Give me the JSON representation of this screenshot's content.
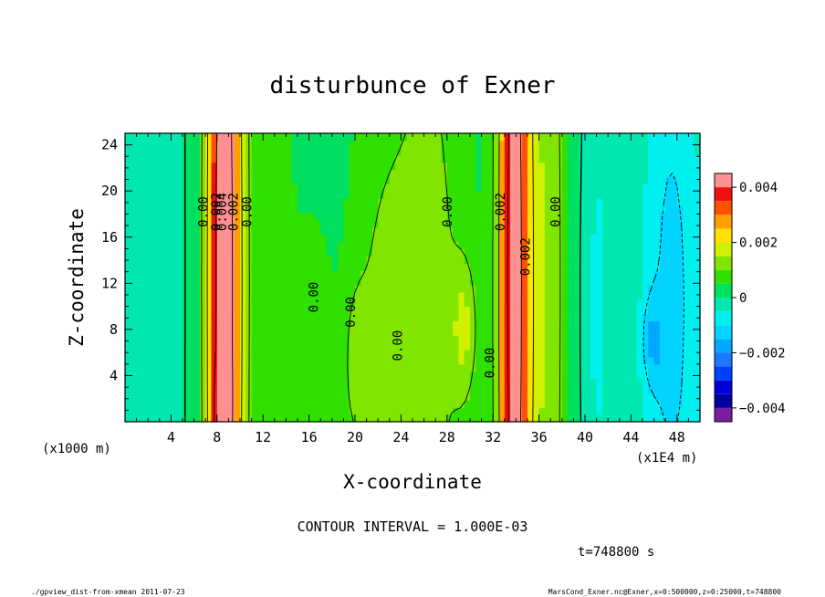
{
  "chart_data": {
    "type": "heatmap",
    "title": "disturbunce of Exner",
    "xlabel": "X-coordinate",
    "ylabel": "Z-coordinate",
    "x_unit_left": "(x1000 m)",
    "x_unit_right": "(x1E4 m)",
    "xlim": [
      0,
      50
    ],
    "ylim": [
      0,
      25
    ],
    "x_ticks": [
      4,
      8,
      12,
      16,
      20,
      24,
      28,
      32,
      36,
      40,
      44,
      48
    ],
    "y_ticks": [
      4,
      8,
      12,
      16,
      20,
      24
    ],
    "contour_interval_text": "CONTOUR INTERVAL = 1.000E-03",
    "time_text": "t=748800 s",
    "footer_left": "./gpview_dist-from-xmean  2011-07-23",
    "footer_right": "MarsCond_Exner.nc@Exner,x=0:500000,z=0:25000,t=748800",
    "colorbar": {
      "min": -0.004,
      "max": 0.004,
      "tick_values": [
        0.004,
        0.002,
        0,
        -0.002,
        -0.004
      ],
      "tick_labels": [
        "0.004",
        "0.002",
        "0",
        "−0.002",
        "−0.004"
      ],
      "levels": [
        {
          "lo": -0.0045,
          "hi": -0.004,
          "color": "#7a1ea0"
        },
        {
          "lo": -0.004,
          "hi": -0.0035,
          "color": "#0000a0"
        },
        {
          "lo": -0.0035,
          "hi": -0.003,
          "color": "#0000d8"
        },
        {
          "lo": -0.003,
          "hi": -0.0025,
          "color": "#0040ff"
        },
        {
          "lo": -0.0025,
          "hi": -0.002,
          "color": "#1e78ff"
        },
        {
          "lo": -0.002,
          "hi": -0.0015,
          "color": "#00a8ff"
        },
        {
          "lo": -0.0015,
          "hi": -0.001,
          "color": "#00d4ff"
        },
        {
          "lo": -0.001,
          "hi": -0.0005,
          "color": "#00f0f0"
        },
        {
          "lo": -0.0005,
          "hi": 0,
          "color": "#00e8b0"
        },
        {
          "lo": 0,
          "hi": 0.0005,
          "color": "#00e060"
        },
        {
          "lo": 0.0005,
          "hi": 0.001,
          "color": "#30e000"
        },
        {
          "lo": 0.001,
          "hi": 0.0015,
          "color": "#80e600"
        },
        {
          "lo": 0.0015,
          "hi": 0.002,
          "color": "#d0f000"
        },
        {
          "lo": 0.002,
          "hi": 0.0025,
          "color": "#ffe000"
        },
        {
          "lo": 0.0025,
          "hi": 0.003,
          "color": "#ffa000"
        },
        {
          "lo": 0.003,
          "hi": 0.0035,
          "color": "#ff5000"
        },
        {
          "lo": 0.0035,
          "hi": 0.004,
          "color": "#f01010"
        },
        {
          "lo": 0.004,
          "hi": 0.0045,
          "color": "#ff9090"
        }
      ]
    },
    "field_features": [
      {
        "x": 8.6,
        "z": 12,
        "sx": 1.5,
        "sz": 60,
        "amp": 0.0048
      },
      {
        "x": 8.4,
        "z": 1,
        "sx": 0.6,
        "sz": 4,
        "amp": 0.0015
      },
      {
        "x": 12.5,
        "z": 12,
        "sx": 3.0,
        "sz": 60,
        "amp": 0.0004
      },
      {
        "x": 16.5,
        "z": 4,
        "sx": 1.4,
        "sz": 11,
        "amp": 0.0006
      },
      {
        "x": 20,
        "z": 5,
        "sx": 1.2,
        "sz": 8,
        "amp": 0.0006
      },
      {
        "x": 22.5,
        "z": 8,
        "sx": 2.6,
        "sz": 18,
        "amp": 0.0007
      },
      {
        "x": 26.5,
        "z": 10,
        "sx": 3.0,
        "sz": 30,
        "amp": 0.0008
      },
      {
        "x": 29.5,
        "z": 8,
        "sx": 1.1,
        "sz": 6,
        "amp": 0.001
      },
      {
        "x": 33.8,
        "z": 12,
        "sx": 1.3,
        "sz": 60,
        "amp": 0.0042
      },
      {
        "x": 36.5,
        "z": 12,
        "sx": 2.2,
        "sz": 60,
        "amp": 0.0012
      },
      {
        "x": 41,
        "z": 10,
        "sx": 1.6,
        "sz": 30,
        "amp": -0.0007
      },
      {
        "x": 2,
        "z": 12,
        "sx": 2.5,
        "sz": 60,
        "amp": -0.0005
      },
      {
        "x": 47.5,
        "z": 10,
        "sx": 2.8,
        "sz": 30,
        "amp": -0.0012
      },
      {
        "x": 45.8,
        "z": 7,
        "sx": 0.9,
        "sz": 4,
        "amp": -0.0009
      }
    ],
    "contour_labels": [
      {
        "x": 7.2,
        "z": 18.2,
        "text": "0.00"
      },
      {
        "x": 8.3,
        "z": 18.2,
        "text": "0.002"
      },
      {
        "x": 8.8,
        "z": 18.2,
        "text": "0.004"
      },
      {
        "x": 9.8,
        "z": 18.2,
        "text": "0.002"
      },
      {
        "x": 11.0,
        "z": 18.2,
        "text": "0.00"
      },
      {
        "x": 16.8,
        "z": 10.8,
        "text": "0.00"
      },
      {
        "x": 20.0,
        "z": 9.5,
        "text": "0.00"
      },
      {
        "x": 24.1,
        "z": 6.6,
        "text": "0.00"
      },
      {
        "x": 28.4,
        "z": 18.2,
        "text": "0.00"
      },
      {
        "x": 32.1,
        "z": 5.1,
        "text": "0.00"
      },
      {
        "x": 33.0,
        "z": 18.2,
        "text": "0.002"
      },
      {
        "x": 35.2,
        "z": 14.3,
        "text": "0.002"
      },
      {
        "x": 37.8,
        "z": 18.2,
        "text": "0.00"
      }
    ]
  }
}
